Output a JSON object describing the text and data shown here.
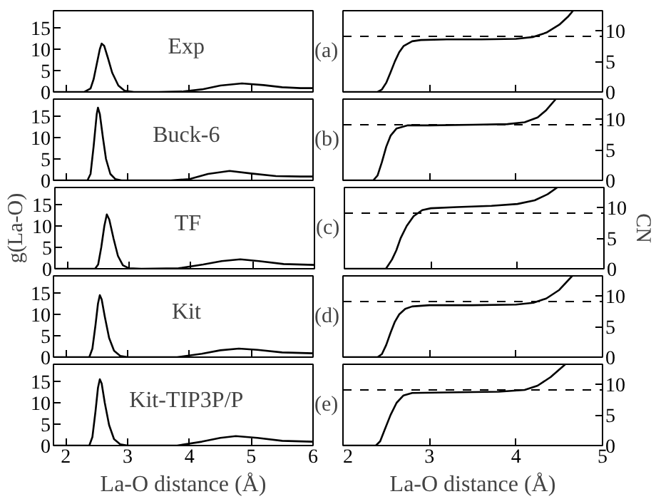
{
  "chart_data": [
    {
      "type": "line",
      "annotations": [
        "Exp",
        "(a)"
      ],
      "xlim": [
        1.8,
        6
      ],
      "xticks": [
        2,
        3,
        4,
        5,
        6
      ],
      "ylim": [
        0,
        19
      ],
      "yticks": [
        0,
        5,
        10,
        15
      ],
      "tick_labels": "y",
      "series": [
        {
          "color": "#000000",
          "x": [
            1.8,
            2.3,
            2.4,
            2.45,
            2.5,
            2.55,
            2.58,
            2.62,
            2.68,
            2.75,
            2.85,
            2.95,
            3.1,
            3.5,
            3.9,
            4.2,
            4.5,
            4.85,
            5.2,
            5.5,
            5.8,
            6.0
          ],
          "values": [
            0,
            0,
            0.8,
            3,
            6.5,
            10,
            11.3,
            10.8,
            8,
            4.5,
            1.5,
            0.3,
            0,
            0,
            0.1,
            0.6,
            1.5,
            2.0,
            1.6,
            1.1,
            0.9,
            0.9
          ]
        }
      ]
    },
    {
      "type": "line",
      "xlim": [
        2,
        5
      ],
      "xticks": [
        2,
        3,
        4,
        5
      ],
      "ylim": [
        0,
        13.3
      ],
      "yticks": [
        0,
        5,
        10
      ],
      "tick_labels": "y",
      "ref_lines": [
        {
          "axis": "y",
          "value": 9.1,
          "line_style": "dashed"
        }
      ],
      "series": [
        {
          "color": "#000000",
          "x": [
            2.0,
            2.4,
            2.45,
            2.5,
            2.55,
            2.6,
            2.65,
            2.7,
            2.8,
            2.9,
            3.2,
            3.6,
            4.0,
            4.2,
            4.35,
            4.5,
            4.6,
            4.66
          ],
          "values": [
            0,
            0,
            0.4,
            1.5,
            3.2,
            5,
            6.5,
            7.5,
            8.3,
            8.5,
            8.6,
            8.6,
            8.7,
            9.0,
            9.7,
            11,
            12.3,
            13.3
          ]
        }
      ]
    },
    {
      "type": "line",
      "annotations": [
        "Buck-6",
        "(b)"
      ],
      "xlim": [
        1.8,
        6
      ],
      "xticks": [
        2,
        3,
        4,
        5,
        6
      ],
      "ylim": [
        0,
        19
      ],
      "yticks": [
        0,
        5,
        10,
        15
      ],
      "tick_labels": "y",
      "series": [
        {
          "color": "#000000",
          "x": [
            1.8,
            2.35,
            2.4,
            2.45,
            2.5,
            2.52,
            2.55,
            2.6,
            2.65,
            2.72,
            2.8,
            2.9,
            3.7,
            4.0,
            4.3,
            4.65,
            5.0,
            5.4,
            5.8,
            6.0
          ],
          "values": [
            0,
            0,
            1.5,
            8,
            15.5,
            17,
            15.5,
            10,
            5,
            1.5,
            0.3,
            0,
            0,
            0.3,
            1.5,
            2.2,
            1.6,
            1.0,
            0.9,
            0.9
          ]
        }
      ]
    },
    {
      "type": "line",
      "xlim": [
        2,
        5
      ],
      "xticks": [
        2,
        3,
        4,
        5
      ],
      "ylim": [
        0,
        13.3
      ],
      "yticks": [
        0,
        5,
        10
      ],
      "tick_labels": "y",
      "ref_lines": [
        {
          "axis": "y",
          "value": 9.1,
          "line_style": "dashed"
        }
      ],
      "series": [
        {
          "color": "#000000",
          "x": [
            2.0,
            2.35,
            2.4,
            2.45,
            2.5,
            2.55,
            2.62,
            2.75,
            3.0,
            3.5,
            3.9,
            4.1,
            4.25,
            4.35,
            4.46
          ],
          "values": [
            0,
            0,
            0.8,
            3,
            5.5,
            7.3,
            8.5,
            9.0,
            9.0,
            9.1,
            9.2,
            9.5,
            10.3,
            11.5,
            13.3
          ]
        }
      ]
    },
    {
      "type": "line",
      "annotations": [
        "TF",
        "(c)"
      ],
      "ylabel": "g(La-O)",
      "xlim": [
        1.8,
        6
      ],
      "xticks": [
        2,
        3,
        4,
        5,
        6
      ],
      "ylim": [
        0,
        19
      ],
      "yticks": [
        0,
        5,
        10,
        15
      ],
      "tick_labels": "y",
      "series": [
        {
          "color": "#000000",
          "x": [
            1.8,
            2.45,
            2.5,
            2.55,
            2.6,
            2.64,
            2.68,
            2.75,
            2.82,
            2.9,
            3.0,
            3.2,
            3.8,
            4.2,
            4.5,
            4.8,
            5.1,
            5.5,
            6.0
          ],
          "values": [
            0,
            0,
            1,
            5,
            10,
            12.7,
            11.5,
            7,
            3,
            0.8,
            0.1,
            0,
            0.1,
            1,
            1.8,
            2.2,
            1.8,
            1.1,
            0.9
          ]
        }
      ]
    },
    {
      "type": "line",
      "ylabel": "CN",
      "xlim": [
        2,
        5
      ],
      "xticks": [
        2,
        3,
        4,
        5
      ],
      "ylim": [
        0,
        13.3
      ],
      "yticks": [
        0,
        5,
        10
      ],
      "tick_labels": "y",
      "ref_lines": [
        {
          "axis": "y",
          "value": 9.1,
          "line_style": "dashed"
        }
      ],
      "series": [
        {
          "color": "#000000",
          "x": [
            2.0,
            2.48,
            2.55,
            2.6,
            2.65,
            2.72,
            2.8,
            2.9,
            3.0,
            3.3,
            3.7,
            4.0,
            4.2,
            4.35,
            4.46
          ],
          "values": [
            0,
            0,
            1.5,
            3,
            5,
            7,
            8.6,
            9.6,
            9.9,
            10.1,
            10.3,
            10.6,
            11.2,
            12.2,
            13.3
          ]
        }
      ]
    },
    {
      "type": "line",
      "annotations": [
        "Kit",
        "(d)"
      ],
      "xlim": [
        1.8,
        6
      ],
      "xticks": [
        2,
        3,
        4,
        5,
        6
      ],
      "ylim": [
        0,
        19
      ],
      "yticks": [
        0,
        5,
        10,
        15
      ],
      "tick_labels": "y",
      "series": [
        {
          "color": "#000000",
          "x": [
            1.8,
            2.38,
            2.43,
            2.48,
            2.52,
            2.55,
            2.58,
            2.63,
            2.7,
            2.78,
            2.88,
            3.0,
            3.8,
            4.2,
            4.5,
            4.8,
            5.1,
            5.5,
            6.0
          ],
          "values": [
            0,
            0,
            2,
            7.5,
            12.5,
            14.5,
            13.5,
            9.5,
            4.5,
            1.5,
            0.3,
            0,
            0,
            0.8,
            1.6,
            2.0,
            1.7,
            1.1,
            0.9
          ]
        }
      ]
    },
    {
      "type": "line",
      "xlim": [
        2,
        5
      ],
      "xticks": [
        2,
        3,
        4,
        5
      ],
      "ylim": [
        0,
        13.3
      ],
      "yticks": [
        0,
        5,
        10
      ],
      "tick_labels": "y",
      "ref_lines": [
        {
          "axis": "y",
          "value": 9.1,
          "line_style": "dashed"
        }
      ],
      "series": [
        {
          "color": "#000000",
          "x": [
            2.0,
            2.4,
            2.45,
            2.5,
            2.55,
            2.6,
            2.65,
            2.72,
            2.8,
            3.0,
            3.5,
            4.0,
            4.2,
            4.35,
            4.5,
            4.65
          ],
          "values": [
            0,
            0,
            0.5,
            2,
            4,
            5.8,
            7,
            7.9,
            8.3,
            8.5,
            8.5,
            8.6,
            8.9,
            9.6,
            11,
            13.3
          ]
        }
      ]
    },
    {
      "type": "line",
      "annotations": [
        "Kit-TIP3P/P",
        "(e)"
      ],
      "xlabel": "La-O distance (Å)",
      "xlim": [
        1.8,
        6
      ],
      "xticks": [
        2,
        3,
        4,
        5,
        6
      ],
      "ylim": [
        0,
        19
      ],
      "yticks": [
        0,
        5,
        10,
        15
      ],
      "series": [
        {
          "color": "#000000",
          "x": [
            1.8,
            2.38,
            2.43,
            2.48,
            2.52,
            2.55,
            2.58,
            2.63,
            2.7,
            2.78,
            2.88,
            3.0,
            3.8,
            4.2,
            4.5,
            4.75,
            5.1,
            5.5,
            6.0
          ],
          "values": [
            0,
            0,
            2,
            8,
            13.5,
            15.5,
            14.5,
            10,
            4.8,
            1.5,
            0.3,
            0,
            0,
            0.9,
            1.8,
            2.2,
            1.8,
            1.1,
            0.9
          ]
        }
      ]
    },
    {
      "type": "line",
      "xlabel": "La-O distance (Å)",
      "xlim": [
        2,
        5
      ],
      "xticks": [
        2,
        3,
        4,
        5
      ],
      "ylim": [
        0,
        13.3
      ],
      "yticks": [
        0,
        5,
        10
      ],
      "ref_lines": [
        {
          "axis": "y",
          "value": 9.1,
          "line_style": "dashed"
        }
      ],
      "series": [
        {
          "color": "#000000",
          "x": [
            2.0,
            2.38,
            2.43,
            2.48,
            2.55,
            2.62,
            2.7,
            2.8,
            3.2,
            3.8,
            4.1,
            4.25,
            4.4,
            4.57
          ],
          "values": [
            0,
            0,
            0.7,
            2.5,
            5,
            7,
            8.2,
            8.6,
            8.7,
            8.8,
            9.1,
            9.8,
            11.2,
            13.3
          ]
        }
      ]
    }
  ]
}
